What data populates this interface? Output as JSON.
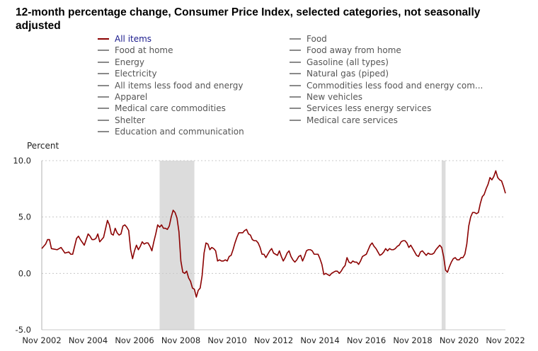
{
  "title": "12-month percentage change, Consumer Price Index, selected categories, not seasonally adjusted",
  "legend": {
    "left": [
      "All items",
      "Food at home",
      "Energy",
      "Electricity",
      "All items less food and energy",
      "Apparel",
      "Medical care commodities",
      "Shelter",
      "Education and communication"
    ],
    "right": [
      "Food",
      "Food away from home",
      "Gasoline (all types)",
      "Natural gas (piped)",
      "Commodities less food and energy com...",
      "New vehicles",
      "Services less energy services",
      "Medical care services"
    ]
  },
  "colors": {
    "series": "#8b0000",
    "recession": "#dcdcdc",
    "grid": "#c8c8c8",
    "legend_active": "#1a1a8c"
  },
  "chart_data": {
    "type": "line",
    "ylabel": "Percent",
    "ylim": [
      -5.0,
      10.0
    ],
    "yticks": [
      "-5.0",
      "0.0",
      "5.0",
      "10.0"
    ],
    "xticks": [
      "Nov 2002",
      "Nov 2004",
      "Nov 2006",
      "Nov 2008",
      "Nov 2010",
      "Nov 2012",
      "Nov 2014",
      "Nov 2016",
      "Nov 2018",
      "Nov 2020",
      "Nov 2022"
    ],
    "x_start": "Nov 2002",
    "x_end": "Nov 2022",
    "grid": "horizontal dotted",
    "recessions": [
      [
        "Dec 2007",
        "Jun 2009"
      ],
      [
        "Feb 2020",
        "Apr 2020"
      ]
    ],
    "series": [
      {
        "name": "All items",
        "points": [
          [
            "Nov 2002",
            2.2
          ],
          [
            "Jan 2003",
            2.6
          ],
          [
            "Feb 2003",
            3.0
          ],
          [
            "Mar 2003",
            3.0
          ],
          [
            "Apr 2003",
            2.2
          ],
          [
            "Jul 2003",
            2.1
          ],
          [
            "Sep 2003",
            2.3
          ],
          [
            "Nov 2003",
            1.8
          ],
          [
            "Jan 2004",
            1.9
          ],
          [
            "Feb 2004",
            1.7
          ],
          [
            "Mar 2004",
            1.7
          ],
          [
            "May 2004",
            3.1
          ],
          [
            "Jun 2004",
            3.3
          ],
          [
            "Jul 2004",
            3.0
          ],
          [
            "Sep 2004",
            2.5
          ],
          [
            "Nov 2004",
            3.5
          ],
          [
            "Dec 2004",
            3.3
          ],
          [
            "Jan 2005",
            3.0
          ],
          [
            "Feb 2005",
            3.0
          ],
          [
            "Mar 2005",
            3.1
          ],
          [
            "Apr 2005",
            3.5
          ],
          [
            "May 2005",
            2.8
          ],
          [
            "Jul 2005",
            3.2
          ],
          [
            "Sep 2005",
            4.7
          ],
          [
            "Oct 2005",
            4.3
          ],
          [
            "Nov 2005",
            3.5
          ],
          [
            "Dec 2005",
            3.4
          ],
          [
            "Jan 2006",
            4.0
          ],
          [
            "Feb 2006",
            3.6
          ],
          [
            "Mar 2006",
            3.4
          ],
          [
            "Apr 2006",
            3.5
          ],
          [
            "May 2006",
            4.2
          ],
          [
            "Jun 2006",
            4.3
          ],
          [
            "Jul 2006",
            4.1
          ],
          [
            "Aug 2006",
            3.8
          ],
          [
            "Sep 2006",
            2.1
          ],
          [
            "Oct 2006",
            1.3
          ],
          [
            "Nov 2006",
            2.0
          ],
          [
            "Dec 2006",
            2.5
          ],
          [
            "Jan 2007",
            2.1
          ],
          [
            "Feb 2007",
            2.4
          ],
          [
            "Mar 2007",
            2.8
          ],
          [
            "Apr 2007",
            2.6
          ],
          [
            "May 2007",
            2.7
          ],
          [
            "Jun 2007",
            2.7
          ],
          [
            "Jul 2007",
            2.4
          ],
          [
            "Aug 2007",
            2.0
          ],
          [
            "Sep 2007",
            2.8
          ],
          [
            "Oct 2007",
            3.5
          ],
          [
            "Nov 2007",
            4.3
          ],
          [
            "Dec 2007",
            4.1
          ],
          [
            "Jan 2008",
            4.3
          ],
          [
            "Feb 2008",
            4.0
          ],
          [
            "Mar 2008",
            4.0
          ],
          [
            "Apr 2008",
            3.9
          ],
          [
            "May 2008",
            4.2
          ],
          [
            "Jun 2008",
            5.0
          ],
          [
            "Jul 2008",
            5.6
          ],
          [
            "Aug 2008",
            5.4
          ],
          [
            "Sep 2008",
            4.9
          ],
          [
            "Oct 2008",
            3.7
          ],
          [
            "Nov 2008",
            1.1
          ],
          [
            "Dec 2008",
            0.1
          ],
          [
            "Jan 2009",
            0.0
          ],
          [
            "Feb 2009",
            0.2
          ],
          [
            "Mar 2009",
            -0.4
          ],
          [
            "Apr 2009",
            -0.7
          ],
          [
            "May 2009",
            -1.3
          ],
          [
            "Jun 2009",
            -1.4
          ],
          [
            "Jul 2009",
            -2.1
          ],
          [
            "Aug 2009",
            -1.5
          ],
          [
            "Sep 2009",
            -1.3
          ],
          [
            "Oct 2009",
            -0.2
          ],
          [
            "Nov 2009",
            1.8
          ],
          [
            "Dec 2009",
            2.7
          ],
          [
            "Jan 2010",
            2.6
          ],
          [
            "Feb 2010",
            2.1
          ],
          [
            "Mar 2010",
            2.3
          ],
          [
            "Apr 2010",
            2.2
          ],
          [
            "May 2010",
            2.0
          ],
          [
            "Jun 2010",
            1.1
          ],
          [
            "Jul 2010",
            1.2
          ],
          [
            "Aug 2010",
            1.1
          ],
          [
            "Sep 2010",
            1.1
          ],
          [
            "Oct 2010",
            1.2
          ],
          [
            "Nov 2010",
            1.1
          ],
          [
            "Dec 2010",
            1.5
          ],
          [
            "Jan 2011",
            1.6
          ],
          [
            "Feb 2011",
            2.1
          ],
          [
            "Mar 2011",
            2.7
          ],
          [
            "Apr 2011",
            3.2
          ],
          [
            "May 2011",
            3.6
          ],
          [
            "Jun 2011",
            3.6
          ],
          [
            "Jul 2011",
            3.6
          ],
          [
            "Aug 2011",
            3.8
          ],
          [
            "Sep 2011",
            3.9
          ],
          [
            "Oct 2011",
            3.5
          ],
          [
            "Nov 2011",
            3.4
          ],
          [
            "Dec 2011",
            3.0
          ],
          [
            "Jan 2012",
            2.9
          ],
          [
            "Feb 2012",
            2.9
          ],
          [
            "Mar 2012",
            2.7
          ],
          [
            "Apr 2012",
            2.3
          ],
          [
            "May 2012",
            1.7
          ],
          [
            "Jun 2012",
            1.7
          ],
          [
            "Jul 2012",
            1.4
          ],
          [
            "Aug 2012",
            1.7
          ],
          [
            "Sep 2012",
            2.0
          ],
          [
            "Oct 2012",
            2.2
          ],
          [
            "Nov 2012",
            1.8
          ],
          [
            "Dec 2012",
            1.7
          ],
          [
            "Jan 2013",
            1.6
          ],
          [
            "Feb 2013",
            2.0
          ],
          [
            "Mar 2013",
            1.5
          ],
          [
            "Apr 2013",
            1.1
          ],
          [
            "May 2013",
            1.4
          ],
          [
            "Jun 2013",
            1.8
          ],
          [
            "Jul 2013",
            2.0
          ],
          [
            "Aug 2013",
            1.5
          ],
          [
            "Sep 2013",
            1.2
          ],
          [
            "Oct 2013",
            1.0
          ],
          [
            "Nov 2013",
            1.2
          ],
          [
            "Dec 2013",
            1.5
          ],
          [
            "Jan 2014",
            1.6
          ],
          [
            "Feb 2014",
            1.1
          ],
          [
            "Mar 2014",
            1.5
          ],
          [
            "Apr 2014",
            2.0
          ],
          [
            "May 2014",
            2.1
          ],
          [
            "Jun 2014",
            2.1
          ],
          [
            "Jul 2014",
            2.0
          ],
          [
            "Aug 2014",
            1.7
          ],
          [
            "Sep 2014",
            1.7
          ],
          [
            "Oct 2014",
            1.7
          ],
          [
            "Nov 2014",
            1.3
          ],
          [
            "Dec 2014",
            0.8
          ],
          [
            "Jan 2015",
            -0.1
          ],
          [
            "Feb 2015",
            0.0
          ],
          [
            "Mar 2015",
            -0.1
          ],
          [
            "Apr 2015",
            -0.2
          ],
          [
            "May 2015",
            0.0
          ],
          [
            "Jun 2015",
            0.1
          ],
          [
            "Jul 2015",
            0.2
          ],
          [
            "Aug 2015",
            0.2
          ],
          [
            "Sep 2015",
            0.0
          ],
          [
            "Oct 2015",
            0.2
          ],
          [
            "Nov 2015",
            0.5
          ],
          [
            "Dec 2015",
            0.7
          ],
          [
            "Jan 2016",
            1.4
          ],
          [
            "Feb 2016",
            1.0
          ],
          [
            "Mar 2016",
            0.9
          ],
          [
            "Apr 2016",
            1.1
          ],
          [
            "May 2016",
            1.0
          ],
          [
            "Jun 2016",
            1.0
          ],
          [
            "Jul 2016",
            0.8
          ],
          [
            "Aug 2016",
            1.1
          ],
          [
            "Sep 2016",
            1.5
          ],
          [
            "Oct 2016",
            1.6
          ],
          [
            "Nov 2016",
            1.7
          ],
          [
            "Dec 2016",
            2.1
          ],
          [
            "Jan 2017",
            2.5
          ],
          [
            "Feb 2017",
            2.7
          ],
          [
            "Mar 2017",
            2.4
          ],
          [
            "Apr 2017",
            2.2
          ],
          [
            "May 2017",
            1.9
          ],
          [
            "Jun 2017",
            1.6
          ],
          [
            "Jul 2017",
            1.7
          ],
          [
            "Aug 2017",
            1.9
          ],
          [
            "Sep 2017",
            2.2
          ],
          [
            "Oct 2017",
            2.0
          ],
          [
            "Nov 2017",
            2.2
          ],
          [
            "Dec 2017",
            2.1
          ],
          [
            "Jan 2018",
            2.1
          ],
          [
            "Feb 2018",
            2.2
          ],
          [
            "Mar 2018",
            2.4
          ],
          [
            "Apr 2018",
            2.5
          ],
          [
            "May 2018",
            2.8
          ],
          [
            "Jun 2018",
            2.9
          ],
          [
            "Jul 2018",
            2.9
          ],
          [
            "Aug 2018",
            2.7
          ],
          [
            "Sep 2018",
            2.3
          ],
          [
            "Oct 2018",
            2.5
          ],
          [
            "Nov 2018",
            2.2
          ],
          [
            "Dec 2018",
            1.9
          ],
          [
            "Jan 2019",
            1.6
          ],
          [
            "Feb 2019",
            1.5
          ],
          [
            "Mar 2019",
            1.9
          ],
          [
            "Apr 2019",
            2.0
          ],
          [
            "May 2019",
            1.8
          ],
          [
            "Jun 2019",
            1.6
          ],
          [
            "Jul 2019",
            1.8
          ],
          [
            "Aug 2019",
            1.7
          ],
          [
            "Sep 2019",
            1.7
          ],
          [
            "Oct 2019",
            1.8
          ],
          [
            "Nov 2019",
            2.1
          ],
          [
            "Dec 2019",
            2.3
          ],
          [
            "Jan 2020",
            2.5
          ],
          [
            "Feb 2020",
            2.3
          ],
          [
            "Mar 2020",
            1.5
          ],
          [
            "Apr 2020",
            0.3
          ],
          [
            "May 2020",
            0.1
          ],
          [
            "Jun 2020",
            0.6
          ],
          [
            "Jul 2020",
            1.0
          ],
          [
            "Aug 2020",
            1.3
          ],
          [
            "Sep 2020",
            1.4
          ],
          [
            "Oct 2020",
            1.2
          ],
          [
            "Nov 2020",
            1.2
          ],
          [
            "Dec 2020",
            1.4
          ],
          [
            "Jan 2021",
            1.4
          ],
          [
            "Feb 2021",
            1.7
          ],
          [
            "Mar 2021",
            2.6
          ],
          [
            "Apr 2021",
            4.2
          ],
          [
            "May 2021",
            5.0
          ],
          [
            "Jun 2021",
            5.4
          ],
          [
            "Jul 2021",
            5.4
          ],
          [
            "Aug 2021",
            5.3
          ],
          [
            "Sep 2021",
            5.4
          ],
          [
            "Oct 2021",
            6.2
          ],
          [
            "Nov 2021",
            6.8
          ],
          [
            "Dec 2021",
            7.0
          ],
          [
            "Jan 2022",
            7.5
          ],
          [
            "Feb 2022",
            7.9
          ],
          [
            "Mar 2022",
            8.5
          ],
          [
            "Apr 2022",
            8.3
          ],
          [
            "May 2022",
            8.6
          ],
          [
            "Jun 2022",
            9.1
          ],
          [
            "Jul 2022",
            8.5
          ],
          [
            "Aug 2022",
            8.3
          ],
          [
            "Sep 2022",
            8.2
          ],
          [
            "Oct 2022",
            7.7
          ],
          [
            "Nov 2022",
            7.1
          ]
        ]
      }
    ]
  }
}
